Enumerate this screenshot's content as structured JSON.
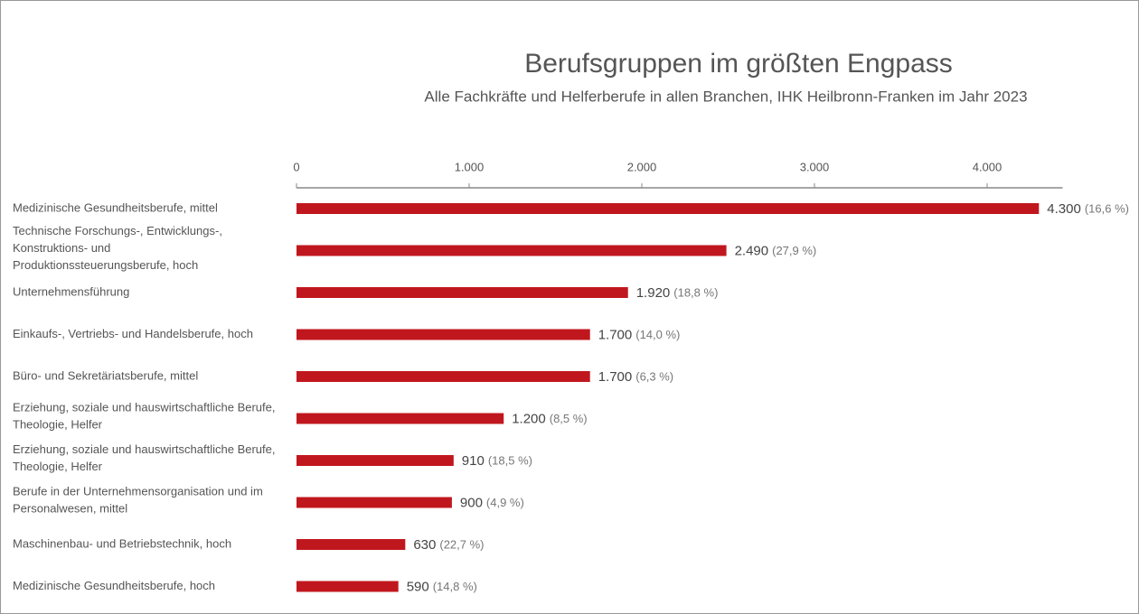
{
  "chart_data": {
    "type": "hbar",
    "title": "Berufsgruppen im größten Engpass",
    "subtitle": "Alle  Fachkräfte und Helferberufe in allen Branchen, IHK Heilbronn-Franken im Jahr 2023",
    "categories": [
      [
        "Medizinische Gesundheitsberufe, mittel"
      ],
      [
        "Technische Forschungs-, Entwicklungs-,",
        "Konstruktions- und",
        "Produktionssteuerungsberufe, hoch"
      ],
      [
        "Unternehmensführung"
      ],
      [
        "Einkaufs-, Vertriebs- und Handelsberufe, hoch"
      ],
      [
        "Büro- und Sekretäriatsberufe, mittel"
      ],
      [
        "Erziehung, soziale und hauswirtschaftliche Berufe,",
        "Theologie, Helfer"
      ],
      [
        "Erziehung, soziale und hauswirtschaftliche Berufe,",
        "Theologie, Helfer"
      ],
      [
        "Berufe in der Unternehmensorganisation und im",
        "Personalwesen, mittel"
      ],
      [
        "Maschinenbau- und Betriebstechnik, hoch"
      ],
      [
        "Medizinische Gesundheitsberufe, hoch"
      ]
    ],
    "values": [
      4300,
      2490,
      1920,
      1700,
      1700,
      1200,
      910,
      900,
      630,
      590
    ],
    "value_labels": [
      "4.300",
      "2.490",
      "1.920",
      "1.700",
      "1.700",
      "1.200",
      "910",
      "900",
      "630",
      "590"
    ],
    "shares": [
      16.6,
      27.9,
      18.8,
      14.0,
      6.3,
      8.5,
      18.5,
      4.9,
      22.7,
      14.8
    ],
    "share_labels": [
      "(16,6 %)",
      "(27,9 %)",
      "(18,8 %)",
      "(14,0 %)",
      "(6,3 %)",
      "(8,5 %)",
      "(18,5 %)",
      "(4,9 %)",
      "(22,7 %)",
      "(14,8 %)"
    ],
    "color": "#c0171e",
    "xlim": [
      0,
      4500
    ],
    "xticks": [
      0,
      {
        "value": 1000,
        "label": "1.000"
      },
      {
        "value": 2000,
        "label": "2.000"
      },
      {
        "value": 3000,
        "label": "3.000"
      },
      {
        "value": 4000,
        "label": "4.000"
      }
    ]
  }
}
